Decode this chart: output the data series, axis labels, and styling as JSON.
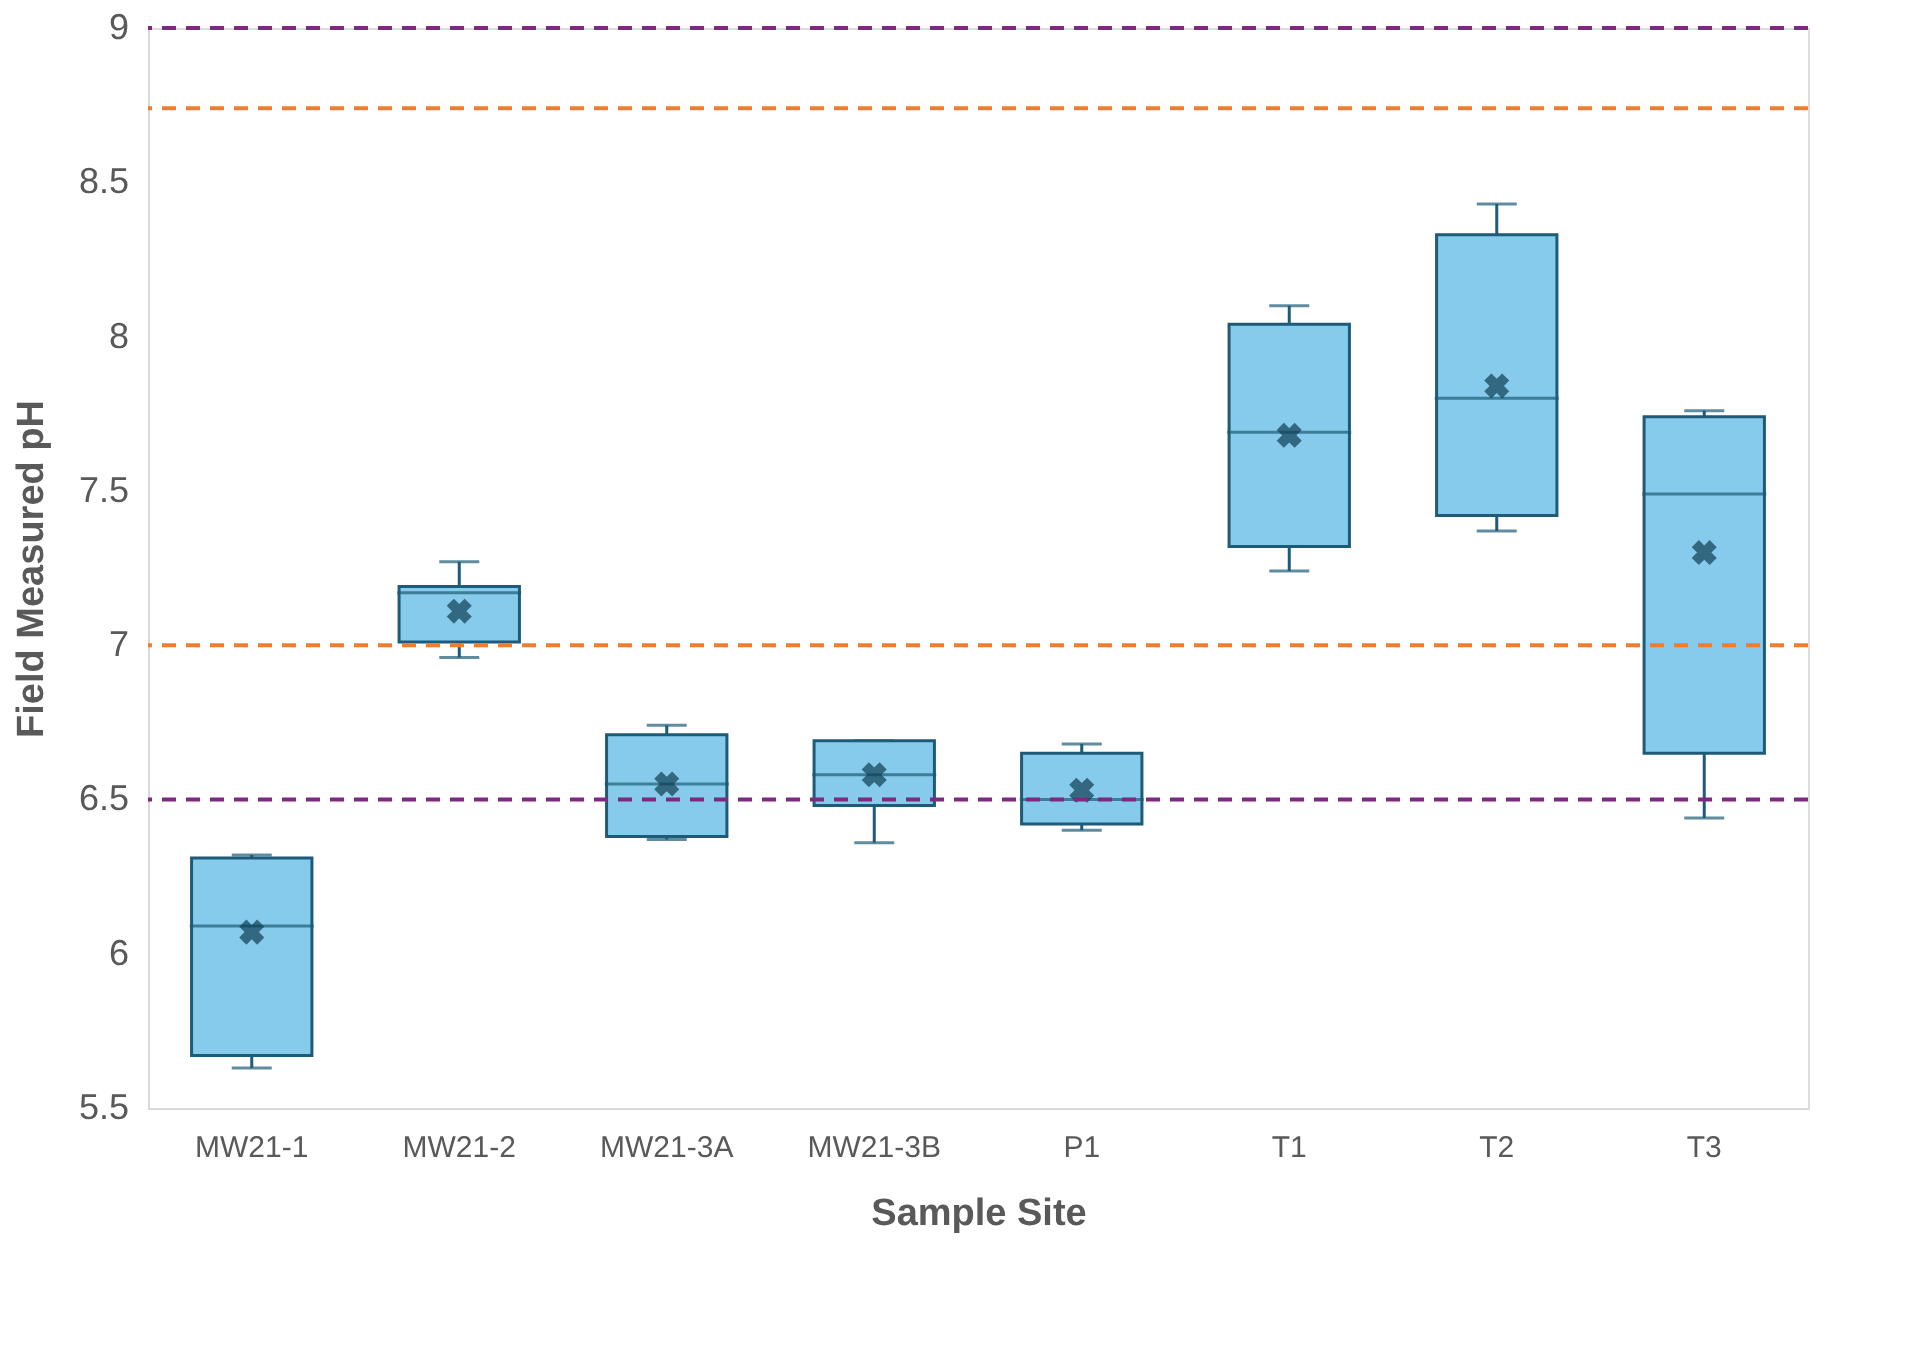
{
  "chart_data": {
    "type": "box",
    "xlabel": "Sample Site",
    "ylabel": "Field Measured pH",
    "categories": [
      "MW21-1",
      "MW21-2",
      "MW21-3A",
      "MW21-3B",
      "P1",
      "T1",
      "T2",
      "T3"
    ],
    "color": "#86cbec",
    "boxes": [
      {
        "low": 5.63,
        "q1": 5.67,
        "median": 6.09,
        "q3": 6.31,
        "high": 6.32,
        "mean": 6.07
      },
      {
        "low": 6.96,
        "q1": 7.01,
        "median": 7.17,
        "q3": 7.19,
        "high": 7.27,
        "mean": 7.11
      },
      {
        "low": 6.37,
        "q1": 6.38,
        "median": 6.55,
        "q3": 6.71,
        "high": 6.74,
        "mean": 6.55
      },
      {
        "low": 6.36,
        "q1": 6.48,
        "median": 6.58,
        "q3": 6.69,
        "high": 6.69,
        "mean": 6.58
      },
      {
        "low": 6.4,
        "q1": 6.42,
        "median": 6.5,
        "q3": 6.65,
        "high": 6.68,
        "mean": 6.53
      },
      {
        "low": 7.24,
        "q1": 7.32,
        "median": 7.69,
        "q3": 8.04,
        "high": 8.1,
        "mean": 7.68
      },
      {
        "low": 7.37,
        "q1": 7.42,
        "median": 7.8,
        "q3": 8.33,
        "high": 8.43,
        "mean": 7.84
      },
      {
        "low": 6.44,
        "q1": 6.65,
        "median": 7.49,
        "q3": 7.74,
        "high": 7.76,
        "mean": 7.3
      }
    ],
    "ylim": [
      5.5,
      9
    ],
    "yticks": [
      5.5,
      6,
      6.5,
      7,
      7.5,
      8,
      8.5,
      9
    ],
    "ref_lines": [
      {
        "axis": "y",
        "value": 9,
        "color": "#7b2a7d",
        "line_style": "dashed"
      },
      {
        "axis": "y",
        "value": 8.74,
        "color": "#ed7d31",
        "line_style": "dashed"
      },
      {
        "axis": "y",
        "value": 7.0,
        "color": "#ed7d31",
        "line_style": "dashed"
      },
      {
        "axis": "y",
        "value": 6.5,
        "color": "#7b2a7d",
        "line_style": "dashed"
      }
    ],
    "grid": false,
    "marker": "cross"
  }
}
